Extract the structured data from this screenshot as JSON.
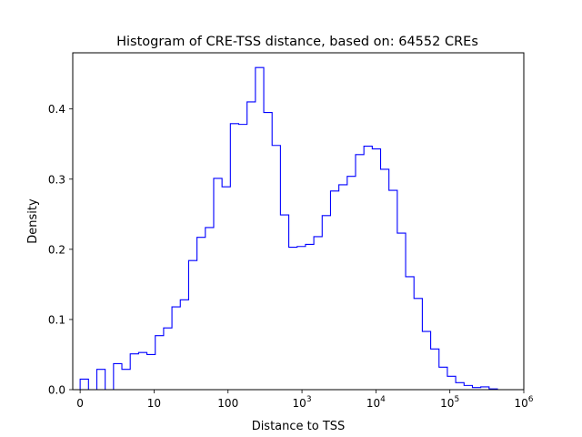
{
  "chart_data": {
    "type": "histogram",
    "title": "Histogram of CRE-TSS distance, based on: 64552 CREs",
    "xlabel": "Distance to TSS",
    "ylabel": "Density",
    "x_scale": "symlog",
    "xlim": [
      -1,
      1000000
    ],
    "ylim": [
      0,
      0.48
    ],
    "grid": false,
    "legend": "none",
    "style": {
      "color": "#0000ff",
      "histtype": "step"
    },
    "x_ticks": [
      {
        "value": 0,
        "label": "0"
      },
      {
        "value": 10,
        "label": "10"
      },
      {
        "value": 100,
        "label": "100"
      },
      {
        "value": 1000,
        "label": "10",
        "exp": "3"
      },
      {
        "value": 10000,
        "label": "10",
        "exp": "4"
      },
      {
        "value": 100000,
        "label": "10",
        "exp": "5"
      },
      {
        "value": 1000000,
        "label": "10",
        "exp": "6"
      }
    ],
    "y_ticks": [
      {
        "value": 0.0,
        "label": "0.0"
      },
      {
        "value": 0.1,
        "label": "0.1"
      },
      {
        "value": 0.2,
        "label": "0.2"
      },
      {
        "value": 0.3,
        "label": "0.3"
      },
      {
        "value": 0.4,
        "label": "0.4"
      }
    ],
    "densities": [
      0.015,
      0.0,
      0.029,
      0.0,
      0.037,
      0.029,
      0.051,
      0.053,
      0.05,
      0.077,
      0.088,
      0.118,
      0.128,
      0.184,
      0.217,
      0.231,
      0.301,
      0.289,
      0.379,
      0.378,
      0.41,
      0.459,
      0.395,
      0.348,
      0.249,
      0.203,
      0.204,
      0.207,
      0.218,
      0.248,
      0.283,
      0.292,
      0.304,
      0.335,
      0.347,
      0.343,
      0.314,
      0.284,
      0.223,
      0.161,
      0.13,
      0.083,
      0.058,
      0.032,
      0.019,
      0.01,
      0.006,
      0.003,
      0.004,
      0.001
    ]
  }
}
